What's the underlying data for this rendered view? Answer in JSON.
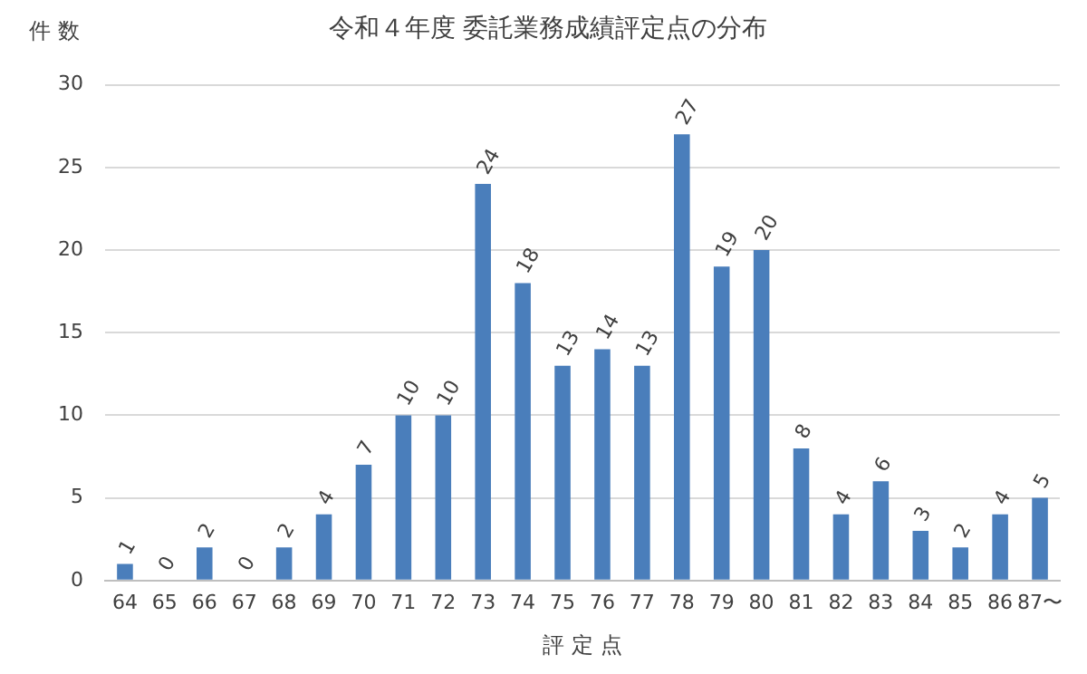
{
  "chart_data": {
    "type": "bar",
    "title": "令和４年度 委託業務成績評定点の分布",
    "xlabel": "評 定 点",
    "ylabel": "件 数",
    "categories": [
      "64",
      "65",
      "66",
      "67",
      "68",
      "69",
      "70",
      "71",
      "72",
      "73",
      "74",
      "75",
      "76",
      "77",
      "78",
      "79",
      "80",
      "81",
      "82",
      "83",
      "84",
      "85",
      "86",
      "87〜"
    ],
    "values": [
      1,
      0,
      2,
      0,
      2,
      4,
      7,
      10,
      10,
      24,
      18,
      13,
      14,
      13,
      27,
      19,
      20,
      8,
      4,
      6,
      3,
      2,
      4,
      5
    ],
    "color": "#4a7ebb",
    "ylim": [
      0,
      30
    ],
    "yticks": [
      0,
      5,
      10,
      15,
      20,
      25,
      30
    ],
    "grid": "y",
    "data_labels": true,
    "legend": false
  }
}
